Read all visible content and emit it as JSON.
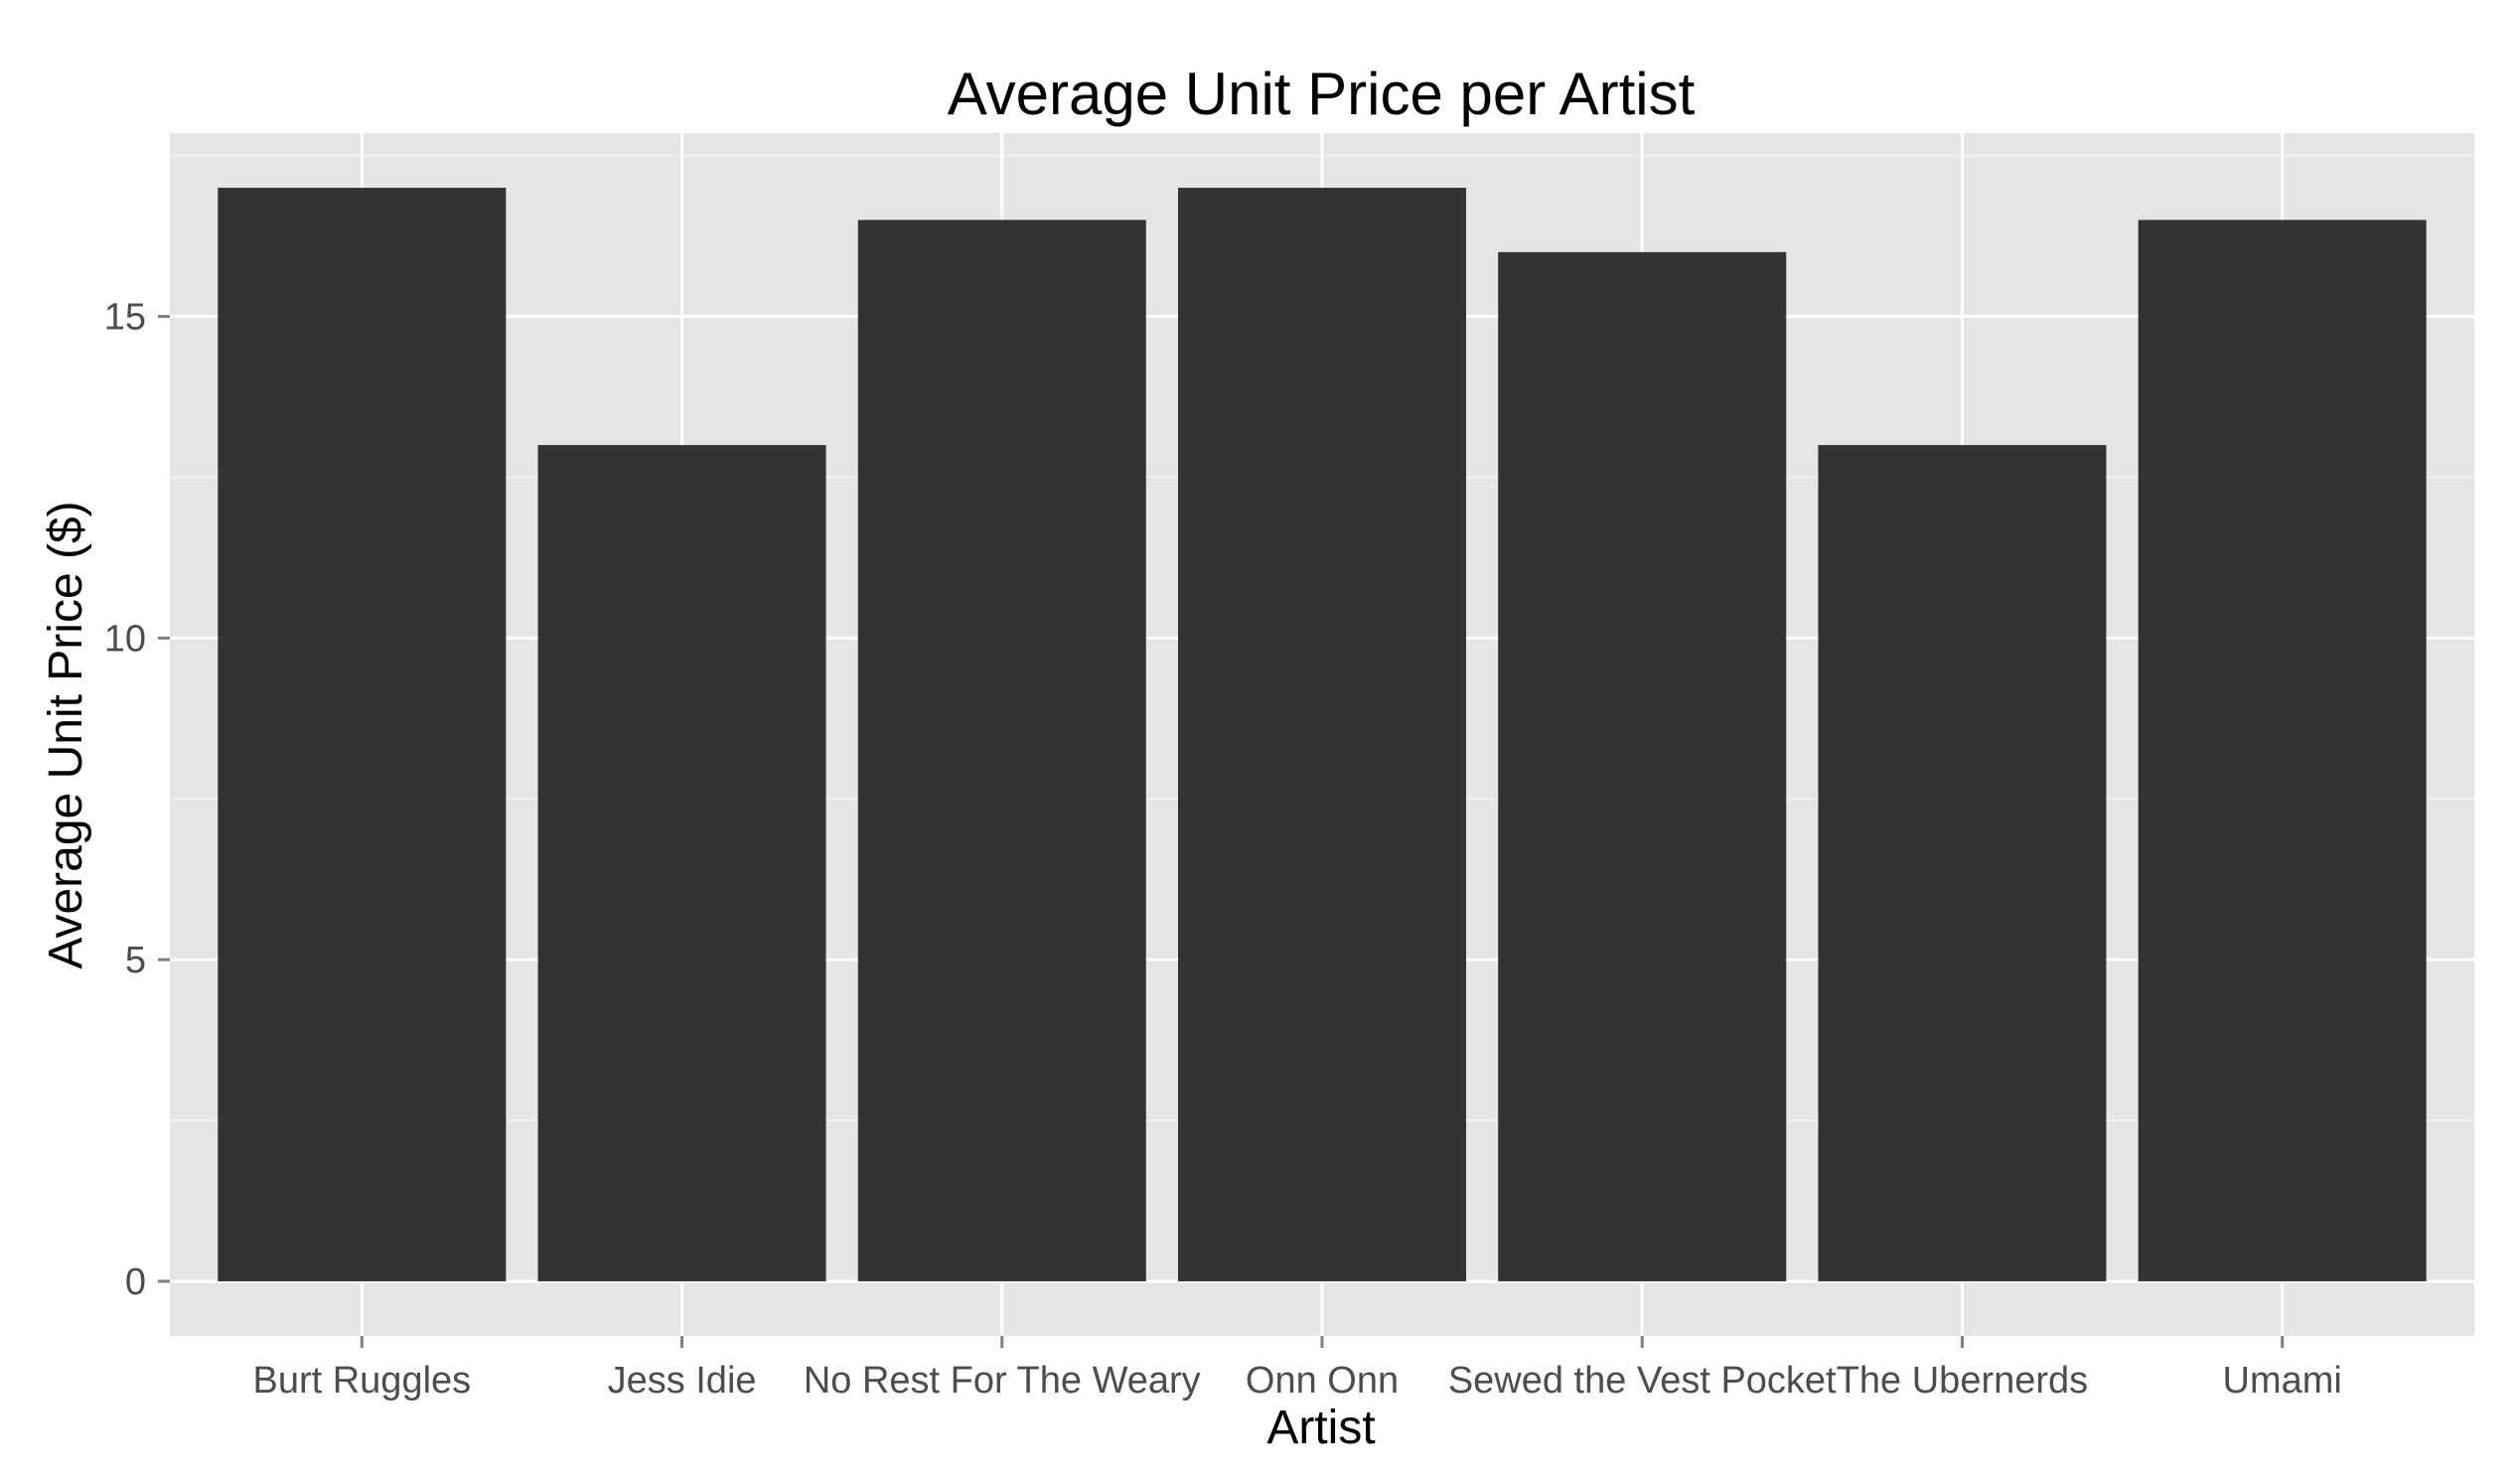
{
  "chart_data": {
    "type": "bar",
    "title": "Average Unit Price per Artist",
    "xlabel": "Artist",
    "ylabel": "Average Unit Price ($)",
    "categories": [
      "Burt Ruggles",
      "Jess Idie",
      "No Rest For The Weary",
      "Onn Onn",
      "Sewed the Vest Pocket",
      "The Ubernerds",
      "Umami"
    ],
    "values": [
      17,
      13,
      16.5,
      17,
      16,
      13,
      16.5
    ],
    "ylim": [
      -0.85,
      17.85
    ],
    "yticks": [
      0,
      5,
      10,
      15
    ],
    "ytick_labels": [
      "0",
      "5",
      "10",
      "15"
    ],
    "grid": true,
    "legend": "none",
    "colors": {
      "panel_background": "#e5e5e5",
      "grid_major": "#ffffff",
      "grid_minor": "#f2f2f2",
      "bar_fill": "#333333",
      "tick_mark": "#7f7f7f",
      "tick_label": "#4d4d4d",
      "text": "#000000"
    }
  }
}
